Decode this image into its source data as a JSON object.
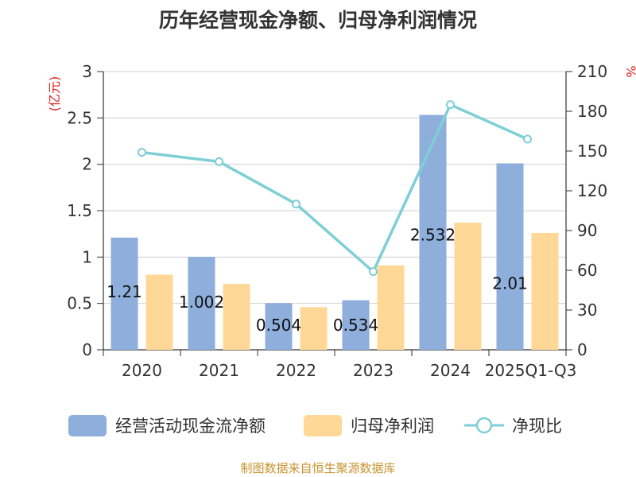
{
  "title": "历年经营现金净额、归母净利润情况",
  "source": "制图数据来自恒生聚源数据库",
  "chart_data": {
    "type": "bar",
    "categories": [
      "2020",
      "2021",
      "2022",
      "2023",
      "2024",
      "2025Q1-Q3"
    ],
    "series": [
      {
        "name": "经营活动现金流净额",
        "type": "bar",
        "axis": "left",
        "color": "#8eaedb",
        "values": [
          1.21,
          1.002,
          0.504,
          0.534,
          2.532,
          2.01
        ],
        "labels": [
          "1.21",
          "1.002",
          "0.504",
          "0.534",
          "2.532",
          "2.01"
        ]
      },
      {
        "name": "归母净利润",
        "type": "bar",
        "axis": "left",
        "color": "#ffd898",
        "values": [
          0.81,
          0.71,
          0.46,
          0.91,
          1.37,
          1.26
        ]
      },
      {
        "name": "净现比",
        "type": "line",
        "axis": "right",
        "color": "#7ecfd6",
        "values": [
          149,
          142,
          110,
          59,
          185,
          159
        ]
      }
    ],
    "y_left": {
      "label": "(亿元)",
      "min": 0,
      "max": 3,
      "ticks": [
        "0",
        "0.5",
        "1",
        "1.5",
        "2",
        "2.5",
        "3"
      ]
    },
    "y_right": {
      "label": "%",
      "min": 0,
      "max": 210,
      "ticks": [
        "0",
        "30",
        "60",
        "90",
        "120",
        "150",
        "180",
        "210"
      ]
    },
    "grid": true,
    "legend_position": "bottom"
  }
}
